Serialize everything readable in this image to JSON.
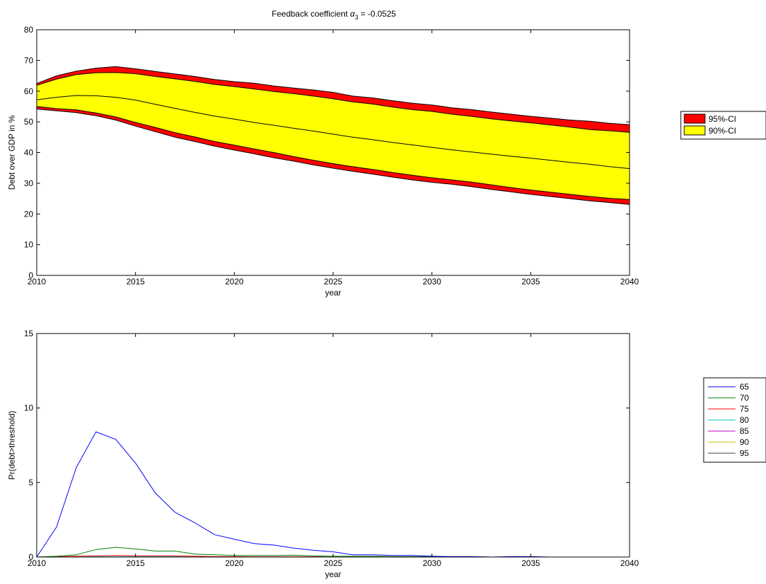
{
  "figure": {
    "title_prefix": "Feedback coefficient ",
    "title_symbol": "α",
    "title_subscript": "3",
    "title_suffix": " = -0.0525"
  },
  "chart_data": [
    {
      "type": "area",
      "xlabel": "year",
      "ylabel": "Debt over GDP in %",
      "xlim": [
        2010,
        2040
      ],
      "ylim": [
        0,
        80
      ],
      "xticks": [
        2010,
        2015,
        2020,
        2025,
        2030,
        2035,
        2040
      ],
      "yticks": [
        0,
        10,
        20,
        30,
        40,
        50,
        60,
        70,
        80
      ],
      "grid": false,
      "legend_position": "outside-right",
      "x": [
        2010,
        2011,
        2012,
        2013,
        2014,
        2015,
        2016,
        2017,
        2018,
        2019,
        2020,
        2021,
        2022,
        2023,
        2024,
        2025,
        2026,
        2027,
        2028,
        2029,
        2030,
        2031,
        2032,
        2033,
        2034,
        2035,
        2036,
        2037,
        2038,
        2039,
        2040
      ],
      "bands": [
        {
          "name": "95%-CI",
          "color": "#ff0000",
          "upper": [
            62.5,
            65.0,
            66.5,
            67.5,
            68.0,
            67.3,
            66.4,
            65.6,
            64.8,
            63.8,
            63.1,
            62.6,
            61.7,
            61.0,
            60.4,
            59.6,
            58.4,
            57.8,
            56.9,
            56.1,
            55.5,
            54.6,
            54.0,
            53.2,
            52.5,
            51.8,
            51.2,
            50.6,
            50.2,
            49.5,
            49.1
          ],
          "lower": [
            54.2,
            53.6,
            53.0,
            52.0,
            50.6,
            48.6,
            46.8,
            45.0,
            43.6,
            42.1,
            40.8,
            39.6,
            38.3,
            37.2,
            36.0,
            34.9,
            33.9,
            33.0,
            32.0,
            31.1,
            30.3,
            29.7,
            28.9,
            28.0,
            27.2,
            26.4,
            25.7,
            25.0,
            24.3,
            23.7,
            23.1
          ]
        },
        {
          "name": "90%-CI",
          "color": "#ffff00",
          "upper": [
            61.9,
            63.9,
            65.4,
            66.0,
            66.1,
            65.7,
            64.8,
            64.0,
            63.2,
            62.2,
            61.5,
            60.7,
            59.9,
            59.2,
            58.4,
            57.5,
            56.5,
            55.8,
            54.8,
            54.0,
            53.4,
            52.5,
            51.8,
            51.0,
            50.3,
            49.7,
            49.0,
            48.3,
            47.5,
            47.1,
            46.6
          ]
        }
      ],
      "inner_lower": [
        55.0,
        54.3,
        53.9,
        52.9,
        51.6,
        49.8,
        48.2,
        46.5,
        45.1,
        43.6,
        42.4,
        41.2,
        40.0,
        38.7,
        37.5,
        36.4,
        35.4,
        34.5,
        33.5,
        32.6,
        31.8,
        31.1,
        30.4,
        29.5,
        28.6,
        27.8,
        27.1,
        26.4,
        25.7,
        25.1,
        24.7
      ],
      "median": {
        "color": "#000000",
        "values": [
          57.2,
          58.0,
          58.6,
          58.5,
          58.0,
          57.1,
          55.7,
          54.4,
          53.1,
          51.9,
          50.9,
          49.8,
          48.9,
          47.9,
          47.0,
          46.0,
          45.0,
          44.2,
          43.3,
          42.5,
          41.7,
          40.9,
          40.2,
          39.5,
          38.8,
          38.2,
          37.5,
          36.8,
          36.2,
          35.4,
          34.8
        ]
      }
    },
    {
      "type": "line",
      "xlabel": "year",
      "ylabel": "Pr(debt>threshold)",
      "xlim": [
        2010,
        2040
      ],
      "ylim": [
        0,
        15
      ],
      "xticks": [
        2010,
        2015,
        2020,
        2025,
        2030,
        2035,
        2040
      ],
      "yticks": [
        0,
        5,
        10,
        15
      ],
      "grid": false,
      "legend_position": "outside-right",
      "x": [
        2010,
        2011,
        2012,
        2013,
        2014,
        2015,
        2016,
        2017,
        2018,
        2019,
        2020,
        2021,
        2022,
        2023,
        2024,
        2025,
        2026,
        2027,
        2028,
        2029,
        2030,
        2031,
        2032,
        2033,
        2034,
        2035,
        2036,
        2037,
        2038,
        2039,
        2040
      ],
      "series": [
        {
          "name": "65",
          "color": "#0000ff",
          "values": [
            0,
            2.0,
            6.0,
            8.4,
            7.9,
            6.3,
            4.3,
            3.0,
            2.3,
            1.5,
            1.2,
            0.9,
            0.8,
            0.6,
            0.45,
            0.35,
            0.15,
            0.15,
            0.1,
            0.1,
            0.05,
            0.03,
            0.03,
            0,
            0.03,
            0.03,
            0,
            0,
            0,
            0,
            0
          ]
        },
        {
          "name": "70",
          "color": "#008000",
          "values": [
            0,
            0.05,
            0.15,
            0.5,
            0.65,
            0.55,
            0.4,
            0.4,
            0.2,
            0.15,
            0.1,
            0.1,
            0.1,
            0.12,
            0.08,
            0.05,
            0.05,
            0.05,
            0.03,
            0.03,
            0.02,
            0.02,
            0.02,
            0,
            0,
            0,
            0,
            0,
            0,
            0,
            0
          ]
        },
        {
          "name": "75",
          "color": "#ff0000",
          "values": [
            0,
            0.02,
            0.05,
            0.08,
            0.1,
            0.08,
            0.08,
            0.08,
            0.05,
            0.03,
            0.03,
            0.02,
            0.02,
            0.02,
            0.02,
            0,
            0,
            0,
            0,
            0,
            0,
            0,
            0,
            0,
            0,
            0,
            0,
            0,
            0,
            0,
            0
          ]
        },
        {
          "name": "80",
          "color": "#00bfbf",
          "values": [
            0,
            0,
            0,
            0.02,
            0.02,
            0.02,
            0.02,
            0.02,
            0,
            0,
            0,
            0,
            0,
            0,
            0,
            0,
            0,
            0,
            0,
            0,
            0,
            0,
            0,
            0,
            0,
            0,
            0,
            0,
            0,
            0,
            0
          ]
        },
        {
          "name": "85",
          "color": "#bf00bf",
          "values": [
            0,
            0,
            0,
            0,
            0,
            0,
            0,
            0,
            0,
            0,
            0,
            0,
            0,
            0,
            0,
            0,
            0,
            0,
            0,
            0,
            0,
            0,
            0,
            0,
            0,
            0,
            0,
            0,
            0,
            0,
            0
          ]
        },
        {
          "name": "90",
          "color": "#bfbf00",
          "values": [
            0,
            0,
            0,
            0,
            0,
            0,
            0,
            0,
            0,
            0,
            0,
            0,
            0,
            0,
            0,
            0,
            0,
            0,
            0,
            0,
            0,
            0,
            0,
            0,
            0,
            0,
            0,
            0,
            0,
            0,
            0
          ]
        },
        {
          "name": "95",
          "color": "#404040",
          "values": [
            0,
            0,
            0,
            0,
            0,
            0,
            0,
            0,
            0,
            0,
            0,
            0,
            0,
            0,
            0,
            0,
            0,
            0,
            0,
            0,
            0,
            0,
            0,
            0,
            0,
            0,
            0,
            0,
            0,
            0,
            0
          ]
        }
      ]
    }
  ]
}
